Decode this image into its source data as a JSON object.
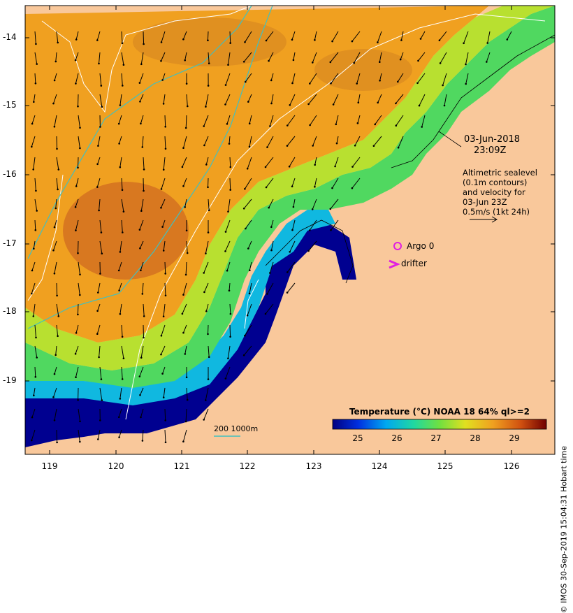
{
  "map": {
    "lon_ticks": [
      "119",
      "120",
      "121",
      "122",
      "123",
      "124",
      "125",
      "126"
    ],
    "lat_ticks": [
      "-14",
      "-15",
      "-16",
      "-17",
      "-18",
      "-19"
    ]
  },
  "annotation": {
    "date": "03-Jun-2018",
    "time": "23:09Z",
    "legend_lines": [
      "Altimetric sealevel",
      "(0.1m contours)",
      "and velocity for",
      "03-Jun 23Z",
      "0.5m/s (1kt 24h)"
    ]
  },
  "markers": {
    "argo_label": "Argo 0",
    "drifter_label": "drifter"
  },
  "depth_legend": {
    "label": "200  1000m"
  },
  "colorbar": {
    "title": "Temperature (°C) NOAA 18 64% ql>=2",
    "ticks": [
      "25",
      "26",
      "27",
      "28",
      "29"
    ],
    "colors": [
      "#000080",
      "#0020d0",
      "#0070e0",
      "#00b8e8",
      "#20d8b0",
      "#40e070",
      "#90e040",
      "#d8e020",
      "#f0c020",
      "#f0a020",
      "#e08020",
      "#d06020",
      "#b04020",
      "#901010",
      "#700000"
    ]
  },
  "land_color": "#f9c89b",
  "credit": "© IMOS 30-Sep-2019 15:04:31 Hobart time"
}
